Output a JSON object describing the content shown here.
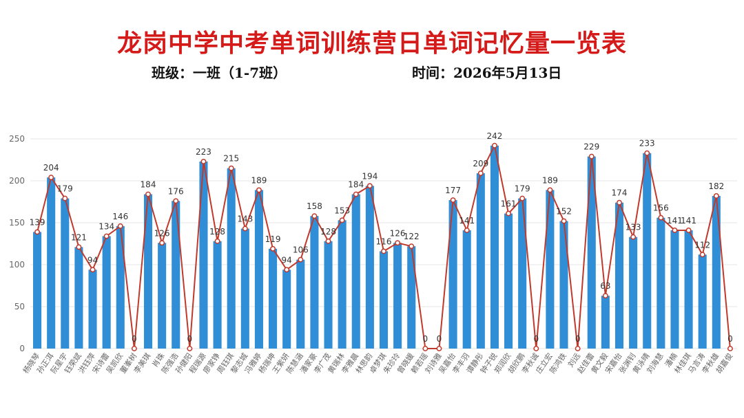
{
  "header": {
    "title": "龙岗中学中考单词训练营日单词记忆量一览表",
    "class_label": "班级：一班（1-7班）",
    "date_label": "时间：2026年5月13日"
  },
  "colors": {
    "bar": "#2f8ed6",
    "line": "#c0392b",
    "grid": "#e6e6e6",
    "axis_text": "#666666"
  },
  "chart_data": {
    "type": "bar",
    "ylim": [
      0,
      250
    ],
    "yticks": [
      0,
      50,
      100,
      150,
      200,
      250
    ],
    "grid": true,
    "overlay_line": true,
    "categories": [
      "杨晓琴",
      "孙正洱",
      "阮星宇",
      "钰荣斌",
      "洪钰萍",
      "宋诗蕾",
      "吴凯欣",
      "董峯树",
      "李美琪",
      "肖珠",
      "陈强浩",
      "孙健阳",
      "程瑞源",
      "廖家铮",
      "周钰琪",
      "黎志城",
      "冯雅婷",
      "杨瑞坤",
      "王紫妍",
      "陈慧涵",
      "潘家豪",
      "李广茂",
      "黄瑞林",
      "李雅晨",
      "林思韵",
      "卓梦琪",
      "朱珍玲",
      "曾晓媛",
      "赖若瑶",
      "刘诗雅",
      "吴嘉怡",
      "李丰羽",
      "谭静彤",
      "钟子锐",
      "郑润欣",
      "胡欣鹏",
      "李秋诚",
      "庄立宏",
      "陈鸿铁",
      "刘远",
      "赵佳蕾",
      "黄文毅",
      "宋嘉怡",
      "张渊钊",
      "黄泳晴",
      "刘海慧",
      "潘楠",
      "林佳琪",
      "马言涛",
      "李秋雄",
      "胡嘉俊"
    ],
    "values": [
      139,
      204,
      179,
      121,
      94,
      134,
      146,
      0,
      184,
      126,
      176,
      0,
      223,
      128,
      215,
      143,
      189,
      119,
      94,
      106,
      158,
      128,
      153,
      184,
      194,
      116,
      126,
      122,
      0,
      0,
      177,
      141,
      209,
      242,
      161,
      179,
      0,
      189,
      152,
      0,
      229,
      63,
      174,
      133,
      233,
      156,
      141,
      141,
      112,
      182,
      0
    ]
  }
}
